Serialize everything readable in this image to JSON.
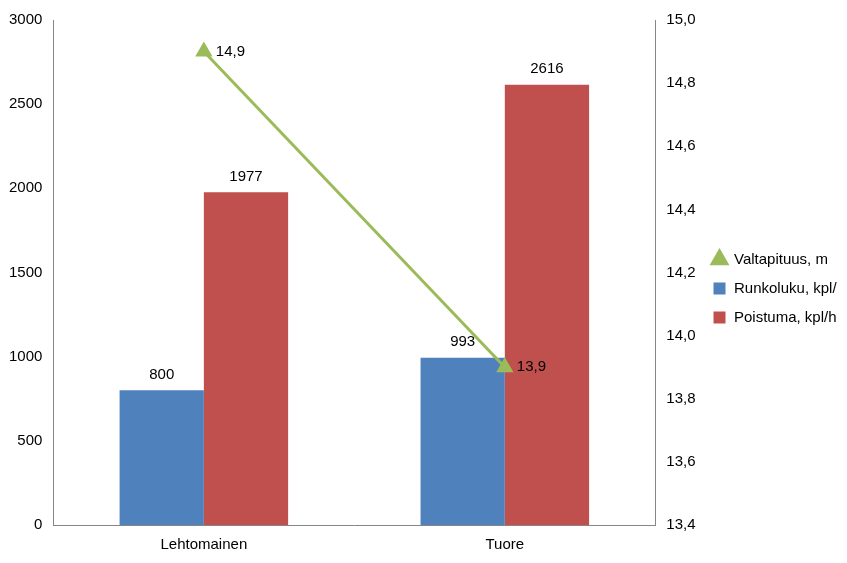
{
  "chart_data": {
    "type": "bar",
    "categories": [
      "Lehtomainen",
      "Tuore"
    ],
    "series": [
      {
        "name": "Runkoluku, kpl/ha",
        "color": "#4f81bd",
        "values": [
          800,
          993
        ]
      },
      {
        "name": "Poistuma, kpl/ha",
        "color": "#c0504d",
        "values": [
          1977,
          2616
        ]
      },
      {
        "name": "Valtapituus, m",
        "type": "line",
        "axis": "y2",
        "color": "#9bbb59",
        "marker": "triangle",
        "values": [
          14.9,
          13.9
        ],
        "value_labels": [
          "14,9",
          "13,9"
        ]
      }
    ],
    "ylim": [
      0,
      3000
    ],
    "yticks": [
      0,
      500,
      1000,
      1500,
      2000,
      2500,
      3000
    ],
    "y2lim": [
      13.4,
      15.0
    ],
    "y2ticks": [
      {
        "value": 13.4,
        "label": "13,4"
      },
      {
        "value": 13.6,
        "label": "13,6"
      },
      {
        "value": 13.8,
        "label": "13,8"
      },
      {
        "value": 14.0,
        "label": "14,0"
      },
      {
        "value": 14.2,
        "label": "14,2"
      },
      {
        "value": 14.4,
        "label": "14,4"
      },
      {
        "value": 14.6,
        "label": "14,6"
      },
      {
        "value": 14.8,
        "label": "14,8"
      },
      {
        "value": 15.0,
        "label": "15,0"
      }
    ],
    "grid": false,
    "legend": "right",
    "data_labels": true
  }
}
